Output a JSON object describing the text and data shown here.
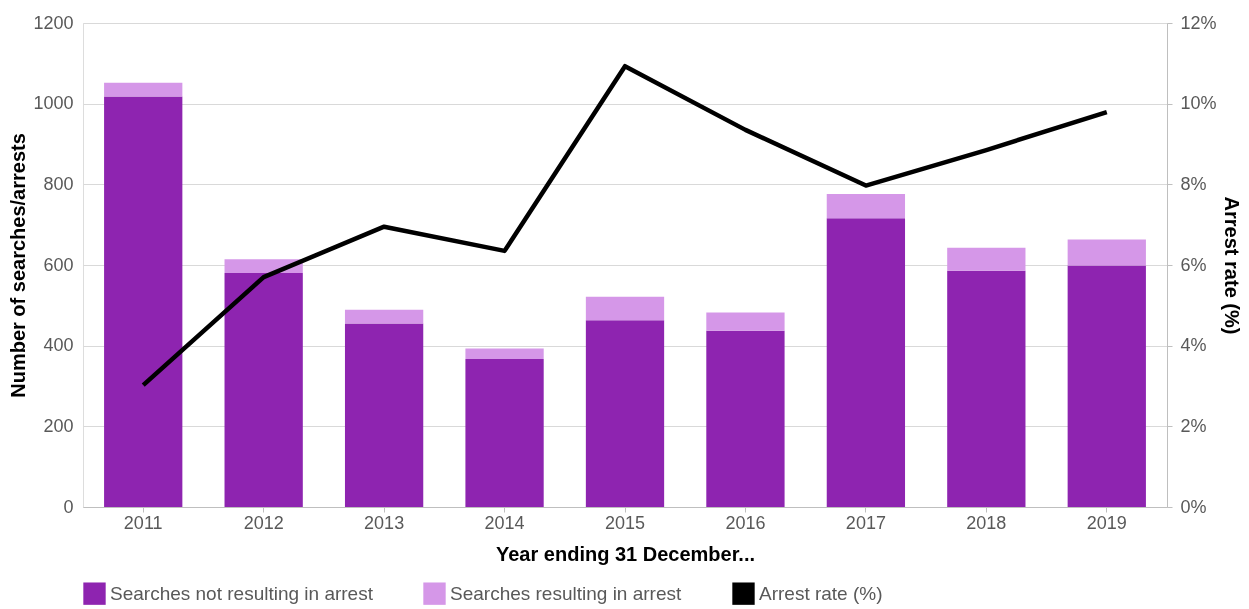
{
  "chart_data": {
    "type": "bar",
    "stacked": true,
    "xlabel": "Year ending 31 December...",
    "ylabel": "Number of searches/arrests",
    "y2label": "Arrest rate (%)",
    "categories": [
      "2011",
      "2012",
      "2013",
      "2014",
      "2015",
      "2016",
      "2017",
      "2018",
      "2019"
    ],
    "series": [
      {
        "name": "Searches not resulting in arrest",
        "color": "#8e24b0",
        "values": [
          1018,
          580,
          455,
          367,
          463,
          437,
          716,
          586,
          599
        ]
      },
      {
        "name": "Searches resulting in arrest",
        "color": "#d597e8",
        "values": [
          34,
          34,
          34,
          26,
          58,
          45,
          60,
          57,
          64
        ]
      },
      {
        "name": "Arrest rate (%)",
        "type": "line",
        "axis": "y2",
        "color": "#000000",
        "values": [
          3.02,
          5.7,
          6.95,
          6.35,
          10.93,
          9.35,
          7.97,
          8.85,
          9.79
        ]
      }
    ],
    "ylim": [
      0,
      1200
    ],
    "yticks": [
      0,
      200,
      400,
      600,
      800,
      1000,
      1200
    ],
    "y2lim": [
      0,
      12
    ],
    "y2ticks": [
      {
        "value": 0,
        "label": "0%"
      },
      {
        "value": 2,
        "label": "2%"
      },
      {
        "value": 4,
        "label": "4%"
      },
      {
        "value": 6,
        "label": "6%"
      },
      {
        "value": 8,
        "label": "8%"
      },
      {
        "value": 10,
        "label": "10%"
      },
      {
        "value": 12,
        "label": "12%"
      }
    ],
    "grid": "y",
    "legend": "bottom",
    "marker": "none",
    "line_style": "solid"
  }
}
